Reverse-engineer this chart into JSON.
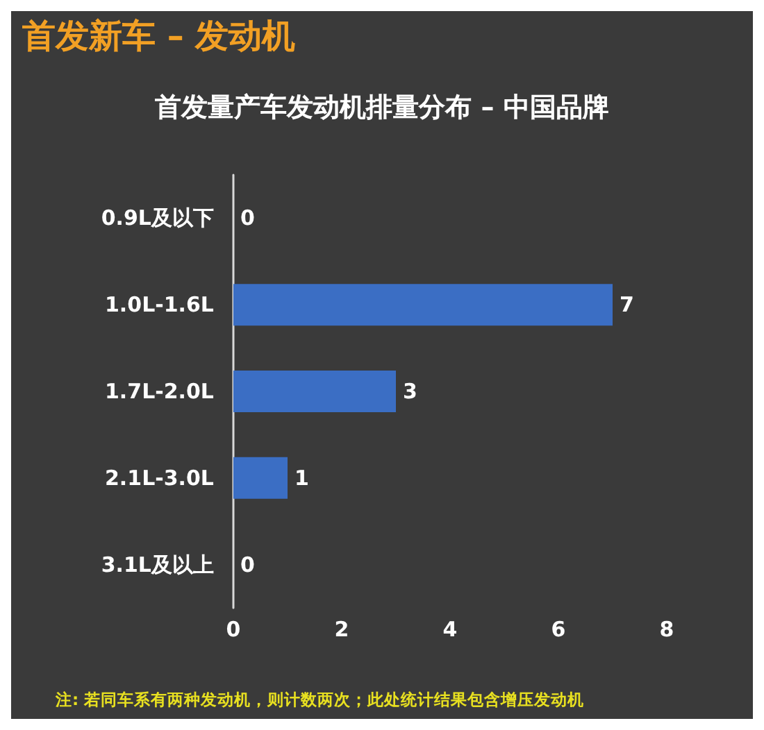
{
  "chart_data": {
    "type": "bar",
    "orientation": "horizontal",
    "title": "首发新车 – 发动机",
    "subtitle": "首发量产车发动机排量分布 – 中国品牌",
    "categories": [
      "0.9L及以下",
      "1.0L-1.6L",
      "1.7L-2.0L",
      "2.1L-3.0L",
      "3.1L及以上"
    ],
    "values": [
      0,
      7,
      3,
      1,
      0
    ],
    "color": "#3b6ec4",
    "xlim": [
      0,
      8
    ],
    "xticks": [
      0,
      2,
      4,
      6,
      8
    ],
    "data_labels": true,
    "annotations": [
      "注: 若同车系有两种发动机，则计数两次；此处统计结果包含增压发动机"
    ]
  }
}
